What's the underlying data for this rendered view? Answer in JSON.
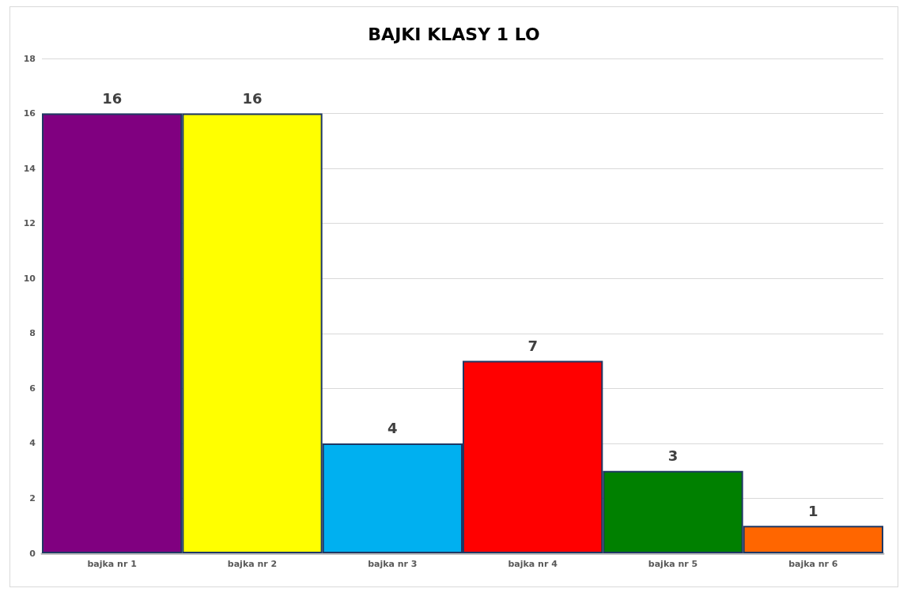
{
  "chart_data": {
    "type": "bar",
    "title": "BAJKI KLASY 1 LO",
    "categories": [
      "bajka nr 1",
      "bajka nr 2",
      "bajka nr 3",
      "bajka nr 4",
      "bajka nr 5",
      "bajka nr 6"
    ],
    "values": [
      16,
      16,
      4,
      7,
      3,
      1
    ],
    "colors": [
      "#800080",
      "#ffff00",
      "#00b0f0",
      "#ff0000",
      "#008000",
      "#ff6600"
    ],
    "ylim": [
      0,
      18
    ],
    "yticks": [
      0,
      2,
      4,
      6,
      8,
      10,
      12,
      14,
      16,
      18
    ],
    "grid": "y",
    "data_labels": true
  }
}
